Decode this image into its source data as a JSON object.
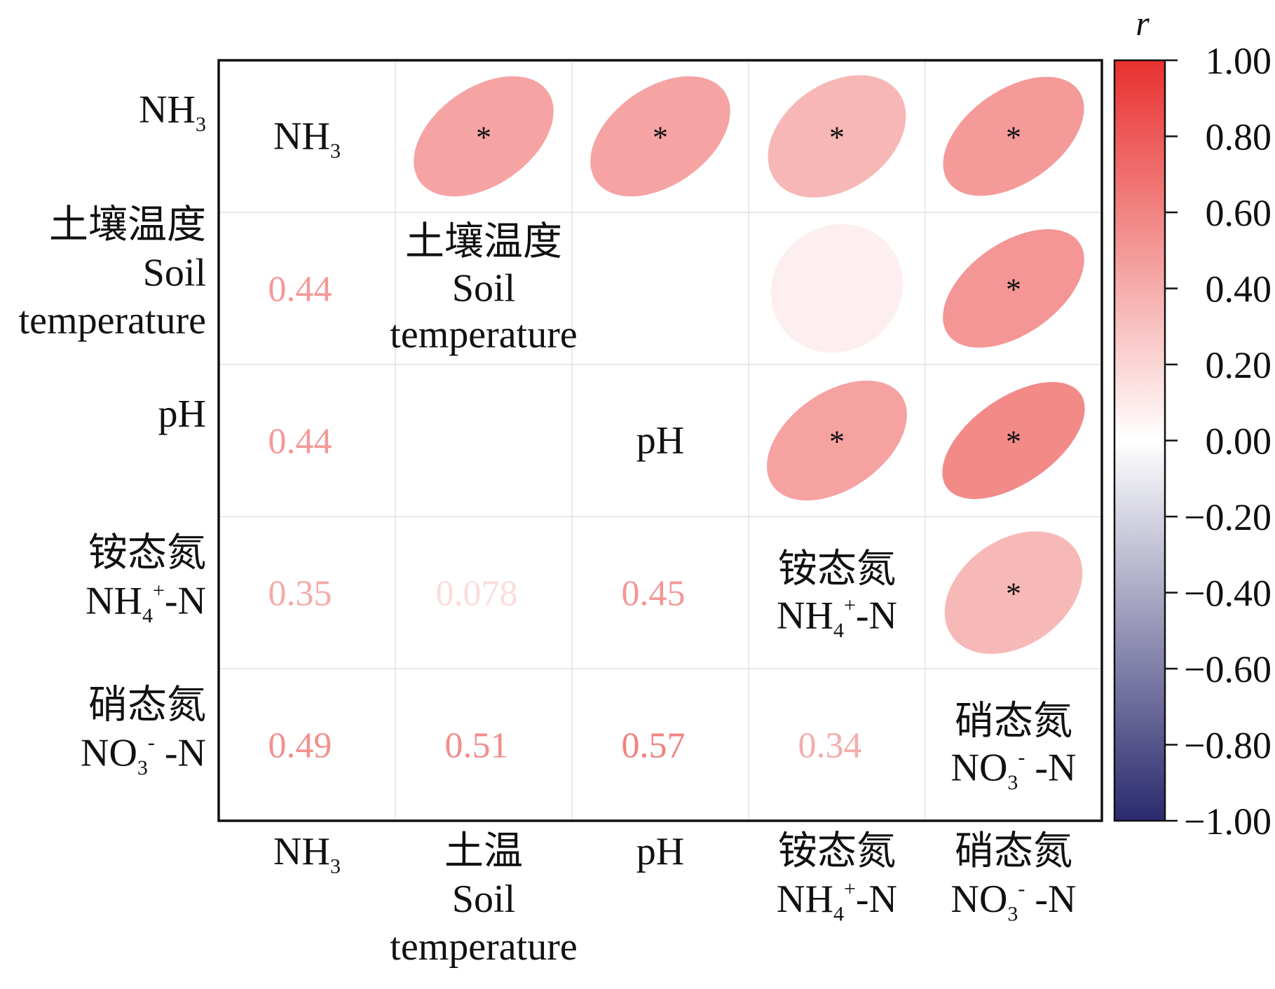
{
  "chart_data": {
    "type": "heatmap",
    "subtype": "correlation-matrix-ellipse",
    "variables": [
      {
        "row_label": [
          "NH_3"
        ],
        "diag_label": [
          "NH_3"
        ],
        "col_label": [
          "NH_3"
        ]
      },
      {
        "row_label": [
          "土壤温度",
          "Soil",
          "temperature"
        ],
        "diag_label": [
          "土壤温度",
          "Soil",
          "temperature"
        ],
        "col_label": [
          "土温",
          "Soil",
          "temperature"
        ]
      },
      {
        "row_label": [
          "pH"
        ],
        "diag_label": [
          "pH"
        ],
        "col_label": [
          "pH"
        ]
      },
      {
        "row_label": [
          "铵态氮",
          "NH_4^+-N"
        ],
        "diag_label": [
          "铵态氮",
          "NH_4^+-N"
        ],
        "col_label": [
          "铵态氮",
          "NH_4^+-N"
        ]
      },
      {
        "row_label": [
          "硝态氮",
          "NO_3^- -N"
        ],
        "diag_label": [
          "硝态氮",
          "NO_3^- -N"
        ],
        "col_label": [
          "硝态氮",
          "NO_3^- -N"
        ]
      }
    ],
    "lower_values": [
      {
        "row": 1,
        "col": 0,
        "value": 0.44,
        "text": "0.44"
      },
      {
        "row": 2,
        "col": 0,
        "value": 0.44,
        "text": "0.44"
      },
      {
        "row": 3,
        "col": 0,
        "value": 0.35,
        "text": "0.35"
      },
      {
        "row": 3,
        "col": 1,
        "value": 0.078,
        "text": "0.078"
      },
      {
        "row": 3,
        "col": 2,
        "value": 0.45,
        "text": "0.45"
      },
      {
        "row": 4,
        "col": 0,
        "value": 0.49,
        "text": "0.49"
      },
      {
        "row": 4,
        "col": 1,
        "value": 0.51,
        "text": "0.51"
      },
      {
        "row": 4,
        "col": 2,
        "value": 0.57,
        "text": "0.57"
      },
      {
        "row": 4,
        "col": 3,
        "value": 0.34,
        "text": "0.34"
      }
    ],
    "upper_ellipses": [
      {
        "row": 0,
        "col": 1,
        "value": 0.44,
        "significant": true
      },
      {
        "row": 0,
        "col": 2,
        "value": 0.44,
        "significant": true
      },
      {
        "row": 0,
        "col": 3,
        "value": 0.35,
        "significant": true
      },
      {
        "row": 0,
        "col": 4,
        "value": 0.49,
        "significant": true
      },
      {
        "row": 1,
        "col": 3,
        "value": 0.078,
        "significant": false
      },
      {
        "row": 1,
        "col": 4,
        "value": 0.51,
        "significant": true
      },
      {
        "row": 2,
        "col": 3,
        "value": 0.45,
        "significant": true
      },
      {
        "row": 2,
        "col": 4,
        "value": 0.57,
        "significant": true
      },
      {
        "row": 3,
        "col": 4,
        "value": 0.34,
        "significant": true
      }
    ],
    "significance_marker": "*",
    "colorbar": {
      "title": "r",
      "range": [
        -1.0,
        1.0
      ],
      "ticks": [
        "1.00",
        "0.80",
        "0.60",
        "0.40",
        "0.20",
        "0.00",
        "−0.20",
        "−0.40",
        "−0.60",
        "−0.80",
        "−1.00"
      ],
      "tick_values": [
        1.0,
        0.8,
        0.6,
        0.4,
        0.2,
        0.0,
        -0.2,
        -0.4,
        -0.6,
        -0.8,
        -1.0
      ],
      "color_positive": "#e8312f",
      "color_zero": "#ffffff",
      "color_negative": "#2b2a6e"
    },
    "grid": true,
    "legend_position": "right"
  }
}
